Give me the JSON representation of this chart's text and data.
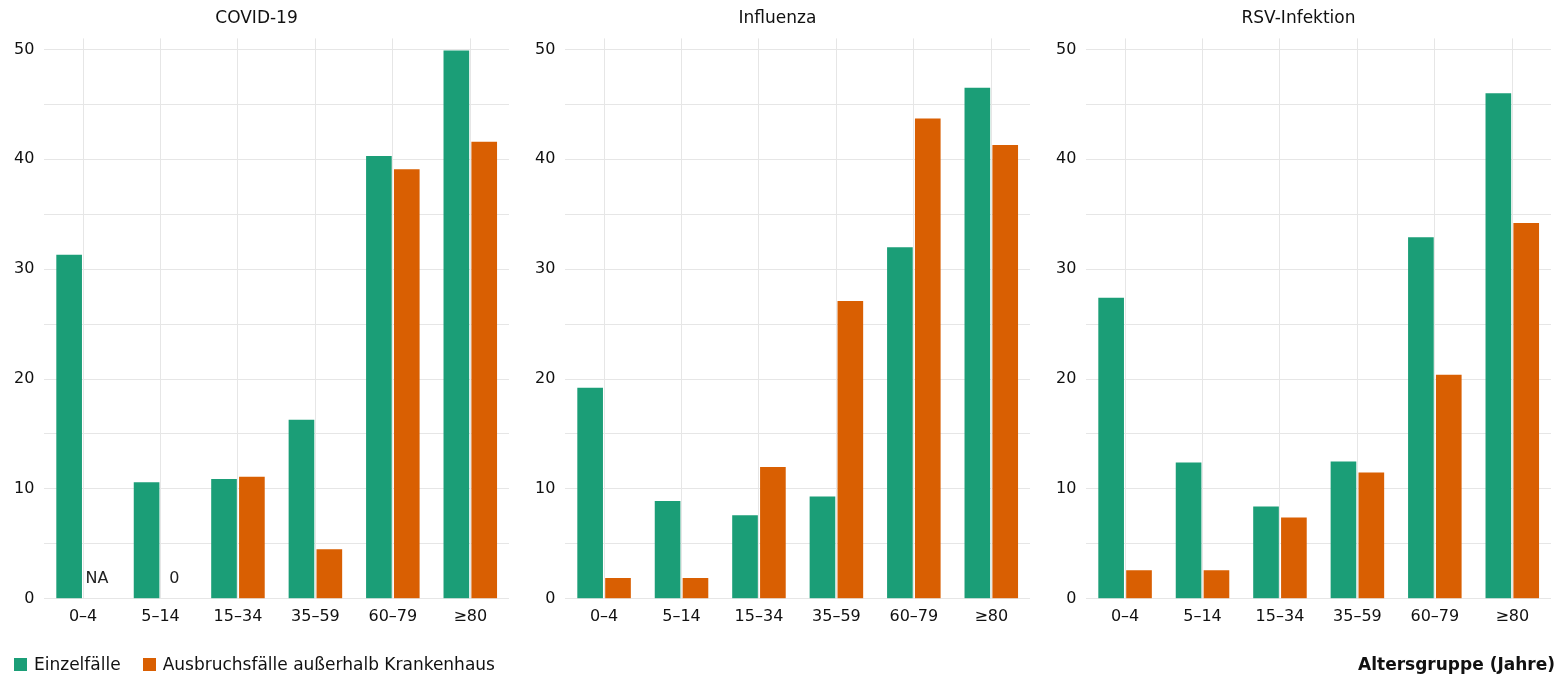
{
  "chart_data": [
    {
      "type": "bar",
      "title": "COVID-19",
      "categories": [
        "0–4",
        "5–14",
        "15–34",
        "35–59",
        "60–79",
        "≥80"
      ],
      "series": [
        {
          "name": "Einzelfälle",
          "color": "#1b9e77",
          "values": [
            31.3,
            10.6,
            10.9,
            16.3,
            40.3,
            49.9
          ]
        },
        {
          "name": "Ausbruchsfälle außerhalb Krankenhaus",
          "color": "#d95f02",
          "values": [
            null,
            0,
            11.1,
            4.5,
            39.1,
            41.6
          ],
          "value_labels": [
            "NA",
            "0",
            null,
            null,
            null,
            null
          ]
        }
      ],
      "ylim": [
        0,
        51
      ],
      "yticks": [
        0,
        {
          "value": 5,
          "label": null
        },
        10,
        {
          "value": 15,
          "label": null
        },
        20,
        {
          "value": 25,
          "label": null
        },
        30,
        {
          "value": 35,
          "label": null
        },
        40,
        {
          "value": 45,
          "label": null
        },
        50
      ],
      "grid": true,
      "legend": "bottom left"
    },
    {
      "type": "bar",
      "title": "Influenza",
      "categories": [
        "0–4",
        "5–14",
        "15–34",
        "35–59",
        "60–79",
        "≥80"
      ],
      "series": [
        {
          "color": "#1b9e77",
          "values": [
            19.2,
            8.9,
            7.6,
            9.3,
            32.0,
            46.5
          ]
        },
        {
          "color": "#d95f02",
          "values": [
            1.9,
            1.9,
            12.0,
            27.1,
            43.7,
            41.3
          ]
        }
      ],
      "ylim": [
        0,
        51
      ],
      "yticks": [
        0,
        {
          "value": 5,
          "label": null
        },
        10,
        {
          "value": 15,
          "label": null
        },
        20,
        {
          "value": 25,
          "label": null
        },
        30,
        {
          "value": 35,
          "label": null
        },
        40,
        {
          "value": 45,
          "label": null
        },
        50
      ],
      "grid": true
    },
    {
      "type": "bar",
      "title": "RSV-Infektion",
      "xlabel": "Altersgruppe (Jahre)",
      "categories": [
        "0–4",
        "5–14",
        "15–34",
        "35–59",
        "60–79",
        "≥80"
      ],
      "series": [
        {
          "color": "#1b9e77",
          "values": [
            27.4,
            12.4,
            8.4,
            12.5,
            32.9,
            46.0
          ]
        },
        {
          "color": "#d95f02",
          "values": [
            2.6,
            2.6,
            7.4,
            11.5,
            20.4,
            34.2
          ]
        }
      ],
      "ylim": [
        0,
        51
      ],
      "yticks": [
        0,
        {
          "value": 5,
          "label": null
        },
        10,
        {
          "value": 15,
          "label": null
        },
        20,
        {
          "value": 25,
          "label": null
        },
        30,
        {
          "value": 35,
          "label": null
        },
        40,
        {
          "value": 45,
          "label": null
        },
        50
      ],
      "grid": true
    }
  ]
}
